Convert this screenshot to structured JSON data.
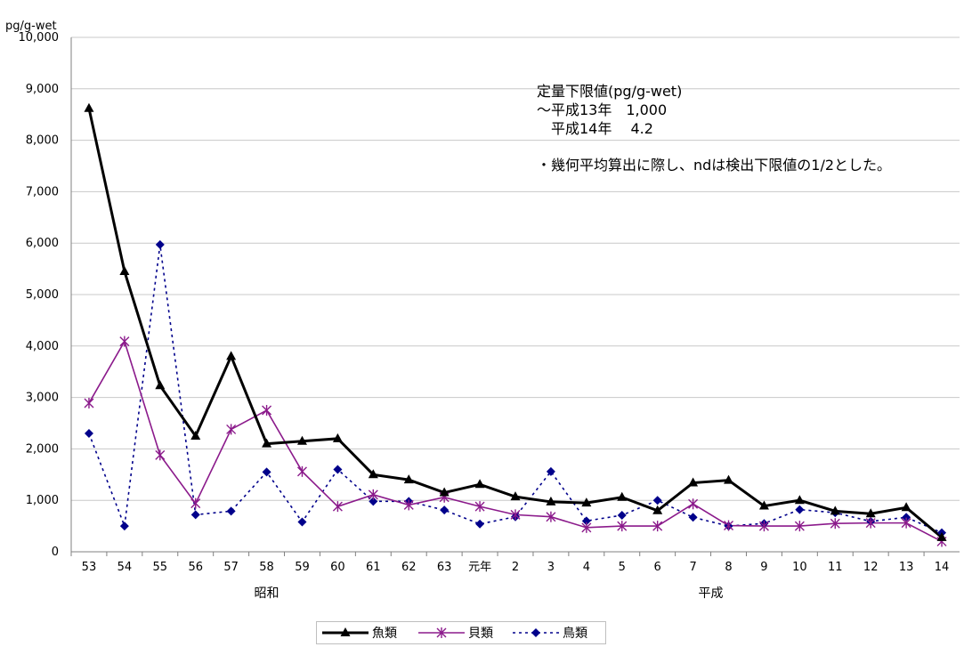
{
  "chart_data": {
    "type": "line",
    "unit_label": "pg/g-wet",
    "ylim": [
      0,
      10000
    ],
    "y_ticks": [
      "0",
      "1,000",
      "2,000",
      "3,000",
      "4,000",
      "5,000",
      "6,000",
      "7,000",
      "8,000",
      "9,000",
      "10,000"
    ],
    "categories": [
      "53",
      "54",
      "55",
      "56",
      "57",
      "58",
      "59",
      "60",
      "61",
      "62",
      "63",
      "元年",
      "2",
      "3",
      "4",
      "5",
      "6",
      "7",
      "8",
      "9",
      "10",
      "11",
      "12",
      "13",
      "14"
    ],
    "era_labels": [
      {
        "label": "昭和",
        "from": 0,
        "to": 10
      },
      {
        "label": "平成",
        "from": 11,
        "to": 24
      }
    ],
    "grid": "horizontal",
    "legend_position": "bottom",
    "series": [
      {
        "name": "魚類",
        "color": "#000000",
        "style": "solid-bold",
        "marker": "triangle",
        "values": [
          8620,
          5450,
          3230,
          2250,
          3800,
          2100,
          2150,
          2200,
          1500,
          1400,
          1150,
          1310,
          1070,
          970,
          950,
          1060,
          800,
          1340,
          1390,
          890,
          1000,
          790,
          740,
          860,
          280
        ]
      },
      {
        "name": "貝類",
        "color": "#8b1a8b",
        "style": "solid",
        "marker": "asterisk",
        "values": [
          2890,
          4090,
          1880,
          940,
          2380,
          2750,
          1560,
          880,
          1110,
          910,
          1060,
          880,
          720,
          680,
          470,
          500,
          500,
          930,
          510,
          500,
          500,
          550,
          560,
          560,
          200
        ]
      },
      {
        "name": "鳥類",
        "color": "#00008b",
        "style": "dashed",
        "marker": "diamond",
        "values": [
          2300,
          500,
          5970,
          720,
          790,
          1550,
          580,
          1600,
          980,
          980,
          810,
          540,
          680,
          1560,
          600,
          710,
          1000,
          670,
          500,
          550,
          820,
          760,
          590,
          670,
          370
        ]
      }
    ],
    "annotations": {
      "title": "定量下限値(pg/g-wet)",
      "line1": "～平成13年　1,000",
      "line2": "　平成14年　 4.2",
      "note": "・幾何平均算出に際し、ndは検出下限値の1/2とした。"
    }
  }
}
